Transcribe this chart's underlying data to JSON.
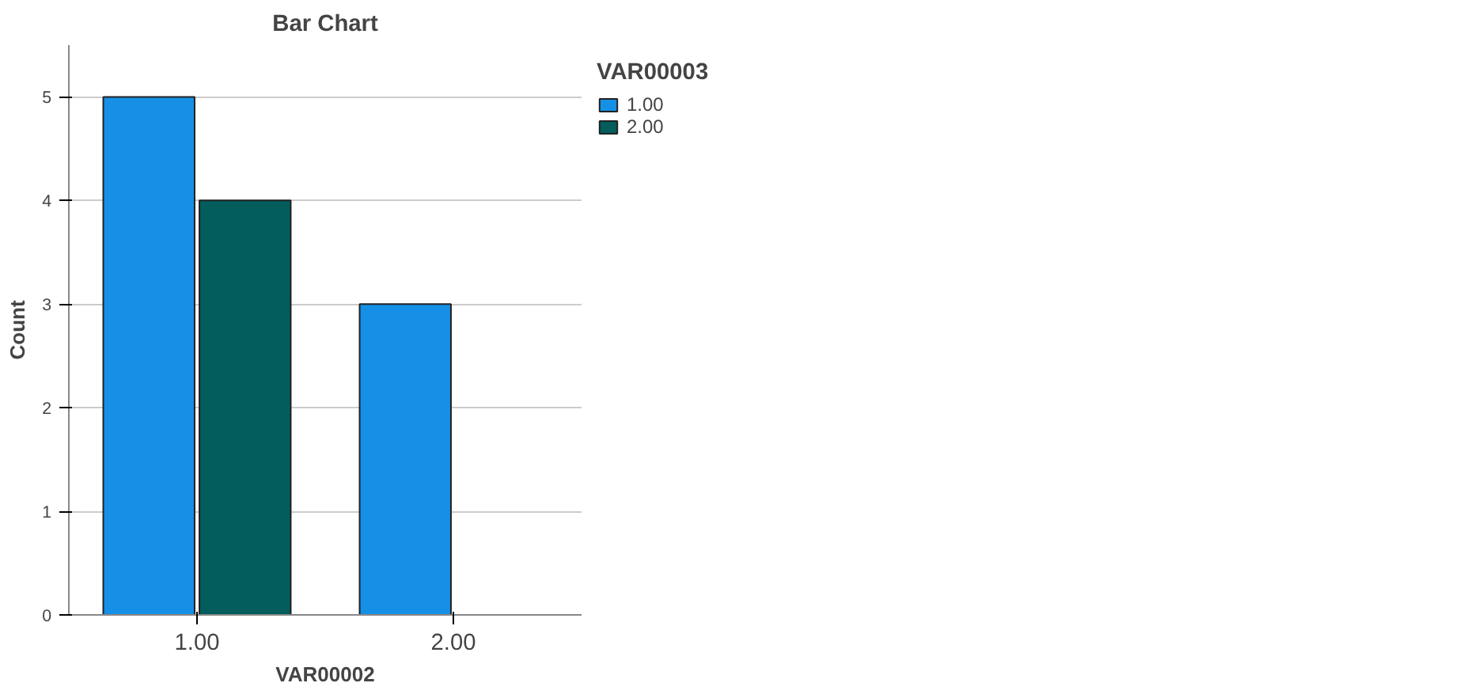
{
  "chart_data": {
    "type": "bar",
    "title": "Bar Chart",
    "xlabel": "VAR00002",
    "ylabel": "Count",
    "legend_title": "VAR00003",
    "categories": [
      "1.00",
      "2.00"
    ],
    "series": [
      {
        "name": "1.00",
        "color": "#1690e6",
        "values": [
          5,
          3
        ]
      },
      {
        "name": "2.00",
        "color": "#035d5d",
        "values": [
          4,
          null
        ]
      }
    ],
    "ylim": [
      0,
      5.5
    ],
    "yticks": [
      0,
      1,
      2,
      3,
      4,
      5
    ],
    "grid": "y",
    "legend": "top right"
  }
}
